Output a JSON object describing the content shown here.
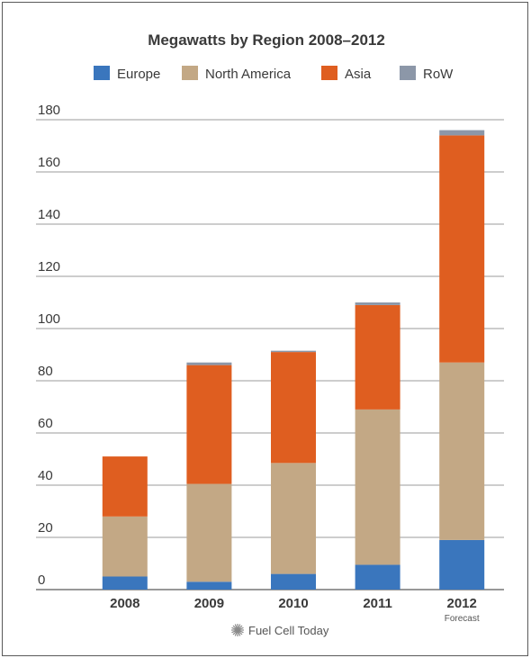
{
  "chart_data": {
    "type": "bar",
    "stacked": true,
    "title": "Megawatts by Region 2008–2012",
    "xlabel": "",
    "ylabel": "",
    "ylim": [
      0,
      180
    ],
    "yticks": [
      0,
      20,
      40,
      60,
      80,
      100,
      120,
      140,
      160,
      180
    ],
    "grid": true,
    "legend_position": "top",
    "categories": [
      "2008",
      "2009",
      "2010",
      "2011",
      "2012"
    ],
    "category_notes": [
      "",
      "",
      "",
      "",
      "Forecast"
    ],
    "series": [
      {
        "name": "Europe",
        "color": "#3a76bd",
        "values": [
          5,
          3,
          6,
          9.5,
          19
        ]
      },
      {
        "name": "North America",
        "color": "#c3a885",
        "values": [
          23,
          37.5,
          42.5,
          59.5,
          68
        ]
      },
      {
        "name": "Asia",
        "color": "#df5e20",
        "values": [
          23,
          45.5,
          42.5,
          40,
          87
        ]
      },
      {
        "name": "RoW",
        "color": "#8c97a8",
        "values": [
          0,
          1,
          0.5,
          1,
          2
        ]
      }
    ]
  },
  "footer": {
    "credit": "Fuel Cell Today",
    "logo_icon": "starburst-logo-icon"
  }
}
